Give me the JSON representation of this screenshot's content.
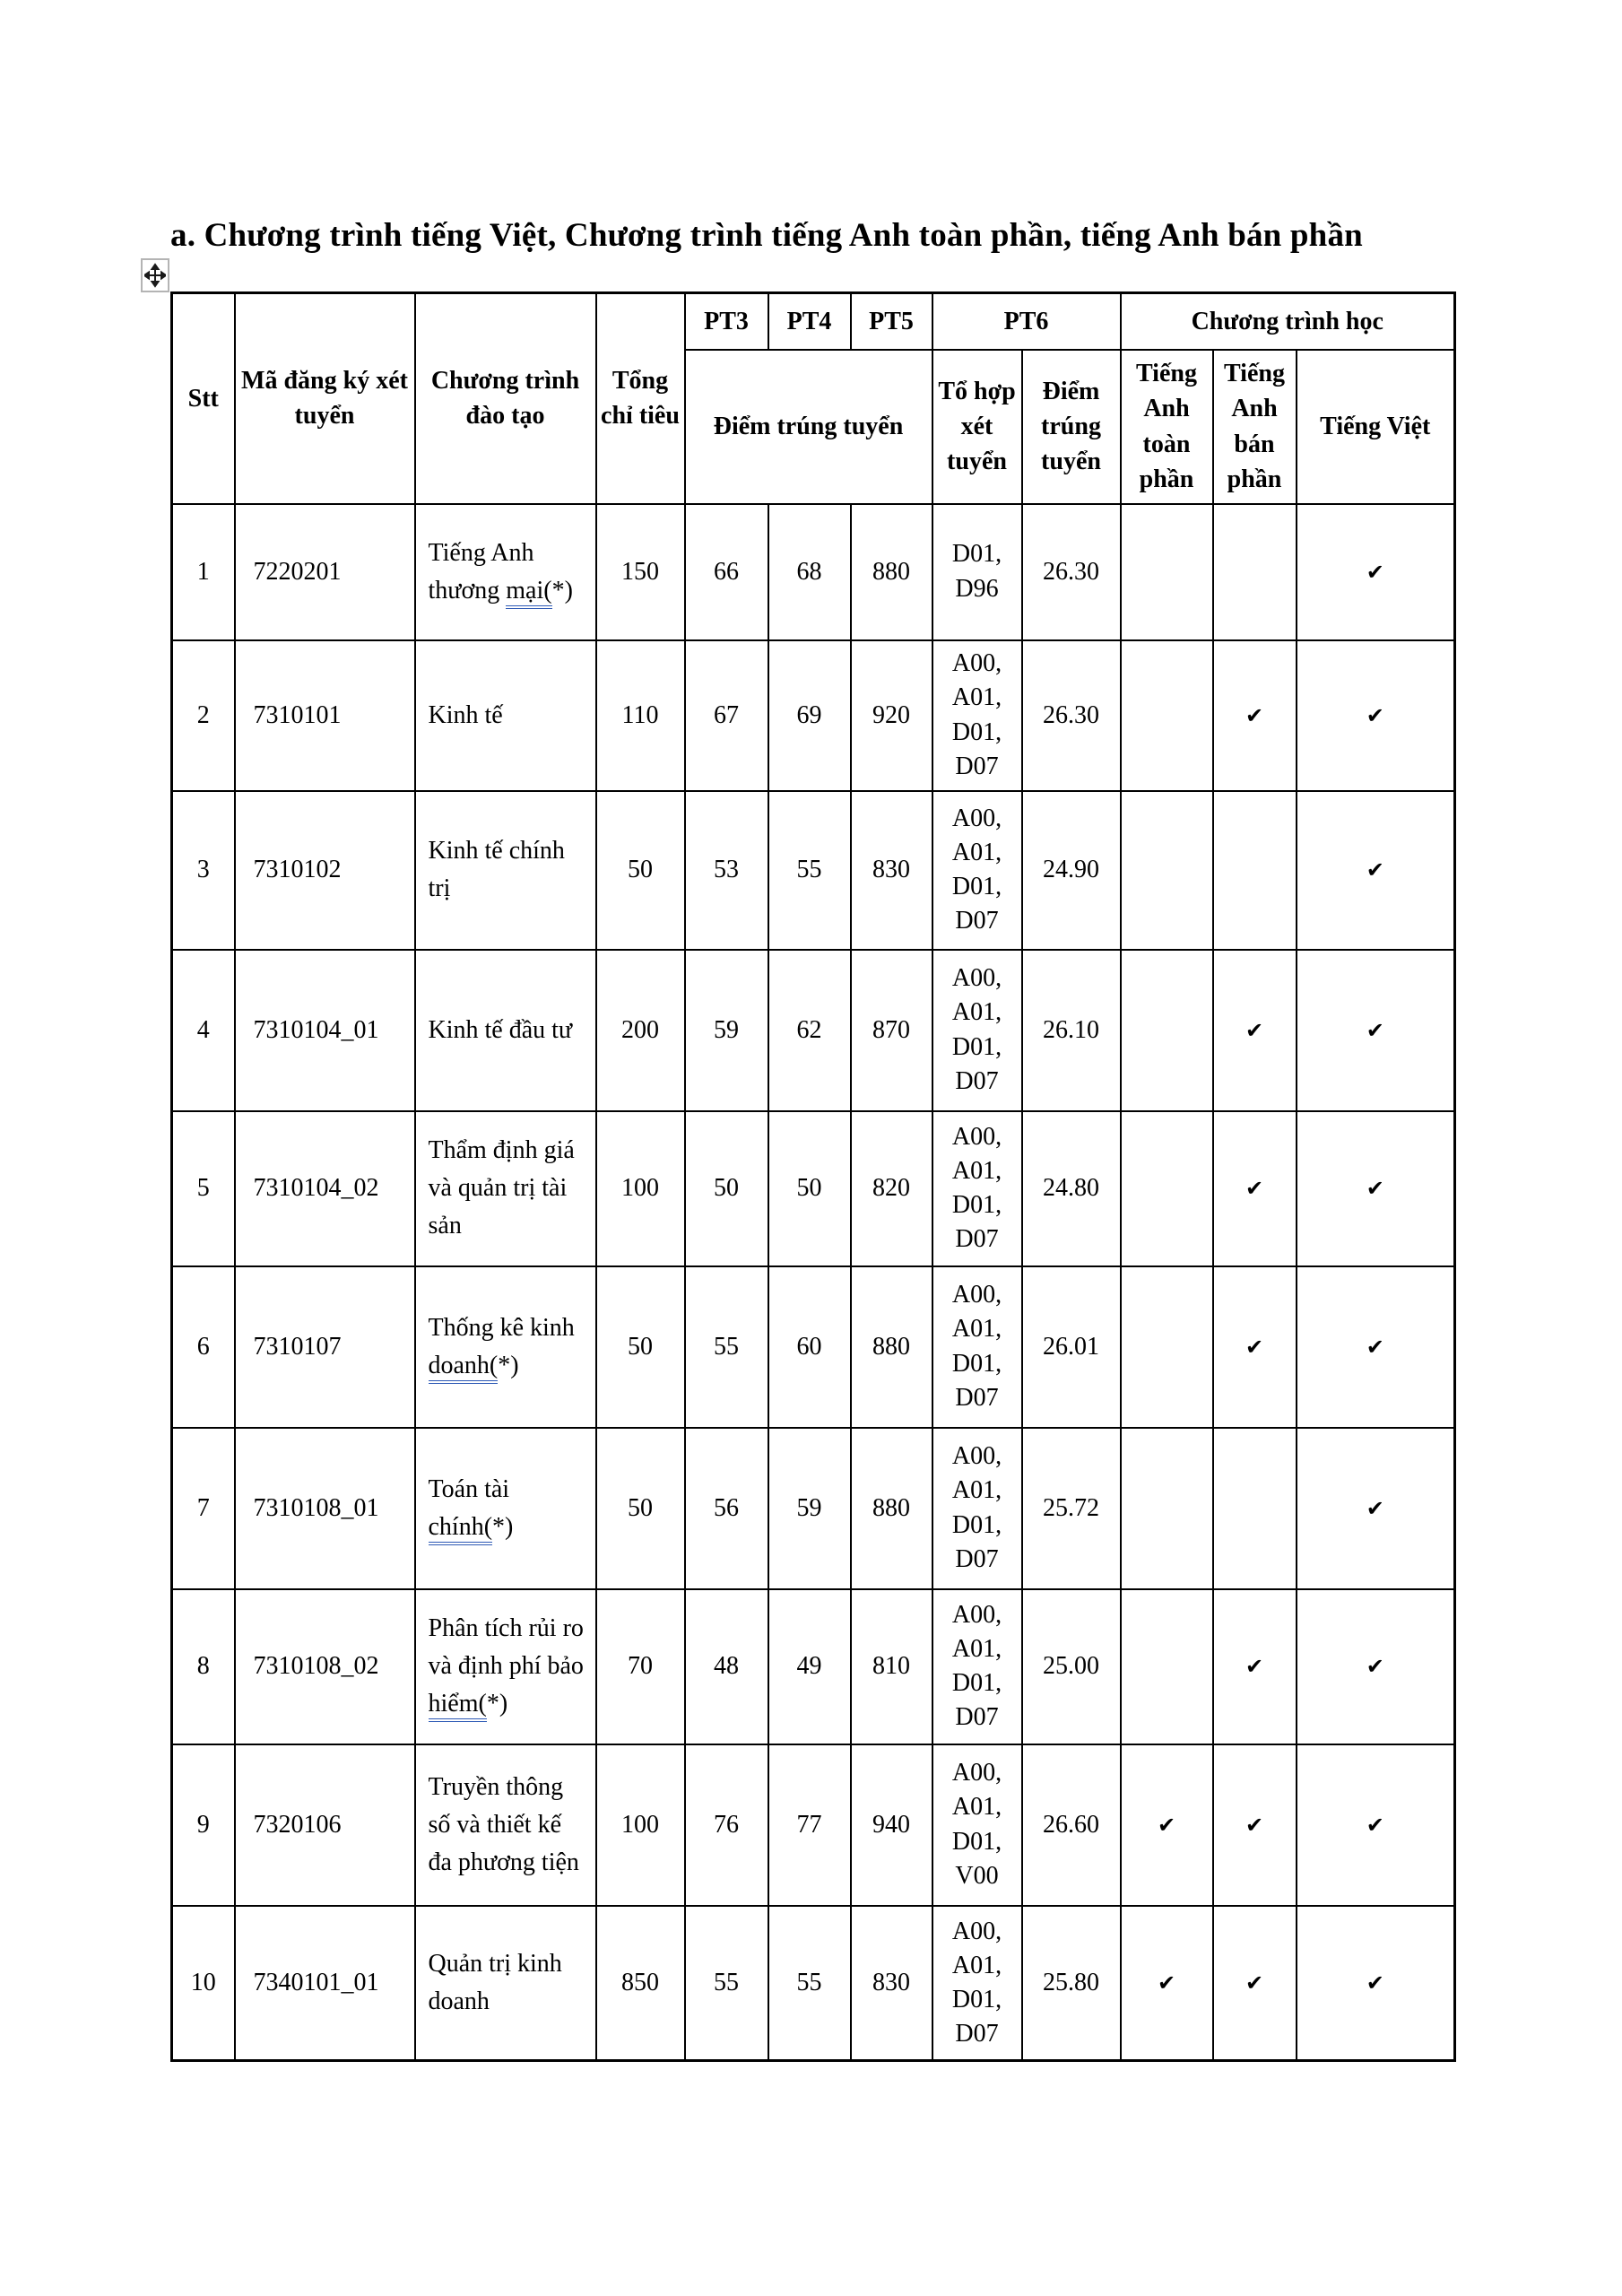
{
  "page": {
    "title": "a. Chương trình tiếng Việt, Chương trình tiếng Anh toàn phần, tiếng Anh bán phần"
  },
  "colors": {
    "background": "#ffffff",
    "text": "#000000",
    "table_border": "#000000",
    "link_underline": "#2d59b5",
    "handle_border": "#b4b4b4"
  },
  "icons": {
    "move_handle_icon": "four-way-arrow",
    "check_icon": "check-mark"
  },
  "table": {
    "check_glyph": "✔",
    "header": {
      "stt": "Stt",
      "ma_dang_ky": "Mã đăng ký xét tuyển",
      "chuong_trinh_dao_tao": "Chương trình đào tạo",
      "tong_chi_tieu": "Tổng chỉ tiêu",
      "pt3": "PT3",
      "pt4": "PT4",
      "pt5": "PT5",
      "pt6": "PT6",
      "diem_trung_tuyen": "Điểm trúng tuyển",
      "to_hop_xet_tuyen": "Tổ hợp xét tuyển",
      "diem_trung_tuyen_pt6": "Điểm trúng tuyển",
      "chuong_trinh_hoc": "Chương trình học",
      "tieng_anh_toan_phan": "Tiếng Anh toàn phần",
      "tieng_anh_ban_phan": "Tiếng Anh bán phần",
      "tieng_viet": "Tiếng Việt"
    },
    "rows": [
      {
        "stt": "1",
        "code": "7220201",
        "program_parts": [
          {
            "text": "Tiếng Anh thương "
          },
          {
            "text": "mại(",
            "link": true
          },
          {
            "text": "*)"
          }
        ],
        "quota": "150",
        "pt3": "66",
        "pt4": "68",
        "pt5": "880",
        "to_hop": "D01,\nD96",
        "pt6": "26.30",
        "toan_phan": false,
        "ban_phan": false,
        "tieng_viet": true
      },
      {
        "stt": "2",
        "code": "7310101",
        "program_parts": [
          {
            "text": "Kinh tế"
          }
        ],
        "quota": "110",
        "pt3": "67",
        "pt4": "69",
        "pt5": "920",
        "to_hop": "A00,\nA01,\nD01,\nD07",
        "pt6": "26.30",
        "toan_phan": false,
        "ban_phan": true,
        "tieng_viet": true
      },
      {
        "stt": "3",
        "code": "7310102",
        "program_parts": [
          {
            "text": "Kinh tế chính trị"
          }
        ],
        "quota": "50",
        "pt3": "53",
        "pt4": "55",
        "pt5": "830",
        "to_hop": "A00,\nA01,\nD01,\nD07",
        "pt6": "24.90",
        "toan_phan": false,
        "ban_phan": false,
        "tieng_viet": true
      },
      {
        "stt": "4",
        "code": "7310104_01",
        "program_parts": [
          {
            "text": "Kinh tế đầu tư"
          }
        ],
        "quota": "200",
        "pt3": "59",
        "pt4": "62",
        "pt5": "870",
        "to_hop": "A00,\nA01,\nD01,\nD07",
        "pt6": "26.10",
        "toan_phan": false,
        "ban_phan": true,
        "tieng_viet": true
      },
      {
        "stt": "5",
        "code": "7310104_02",
        "program_parts": [
          {
            "text": "Thẩm định giá và quản trị tài sản"
          }
        ],
        "quota": "100",
        "pt3": "50",
        "pt4": "50",
        "pt5": "820",
        "to_hop": "A00,\nA01,\nD01,\nD07",
        "pt6": "24.80",
        "toan_phan": false,
        "ban_phan": true,
        "tieng_viet": true
      },
      {
        "stt": "6",
        "code": "7310107",
        "program_parts": [
          {
            "text": "Thống kê kinh "
          },
          {
            "text": "doanh(",
            "link": true
          },
          {
            "text": "*)"
          }
        ],
        "quota": "50",
        "pt3": "55",
        "pt4": "60",
        "pt5": "880",
        "to_hop": "A00,\nA01,\nD01,\nD07",
        "pt6": "26.01",
        "toan_phan": false,
        "ban_phan": true,
        "tieng_viet": true
      },
      {
        "stt": "7",
        "code": "7310108_01",
        "program_parts": [
          {
            "text": "Toán tài "
          },
          {
            "text": "chính(",
            "link": true
          },
          {
            "text": "*)"
          }
        ],
        "quota": "50",
        "pt3": "56",
        "pt4": "59",
        "pt5": "880",
        "to_hop": "A00,\nA01,\nD01,\nD07",
        "pt6": "25.72",
        "toan_phan": false,
        "ban_phan": false,
        "tieng_viet": true
      },
      {
        "stt": "8",
        "code": "7310108_02",
        "program_parts": [
          {
            "text": "Phân tích rủi ro và định phí bảo "
          },
          {
            "text": "hiểm(",
            "link": true
          },
          {
            "text": "*)"
          }
        ],
        "quota": "70",
        "pt3": "48",
        "pt4": "49",
        "pt5": "810",
        "to_hop": "A00,\nA01,\nD01,\nD07",
        "pt6": "25.00",
        "toan_phan": false,
        "ban_phan": true,
        "tieng_viet": true
      },
      {
        "stt": "9",
        "code": "7320106",
        "program_parts": [
          {
            "text": "Truyền thông số và thiết kế đa phương tiện"
          }
        ],
        "quota": "100",
        "pt3": "76",
        "pt4": "77",
        "pt5": "940",
        "to_hop": "A00,\nA01,\nD01,\nV00",
        "pt6": "26.60",
        "toan_phan": true,
        "ban_phan": true,
        "tieng_viet": true
      },
      {
        "stt": "10",
        "code": "7340101_01",
        "program_parts": [
          {
            "text": "Quản trị kinh doanh"
          }
        ],
        "quota": "850",
        "pt3": "55",
        "pt4": "55",
        "pt5": "830",
        "to_hop": "A00,\nA01,\nD01,\nD07",
        "pt6": "25.80",
        "toan_phan": true,
        "ban_phan": true,
        "tieng_viet": true
      }
    ]
  }
}
